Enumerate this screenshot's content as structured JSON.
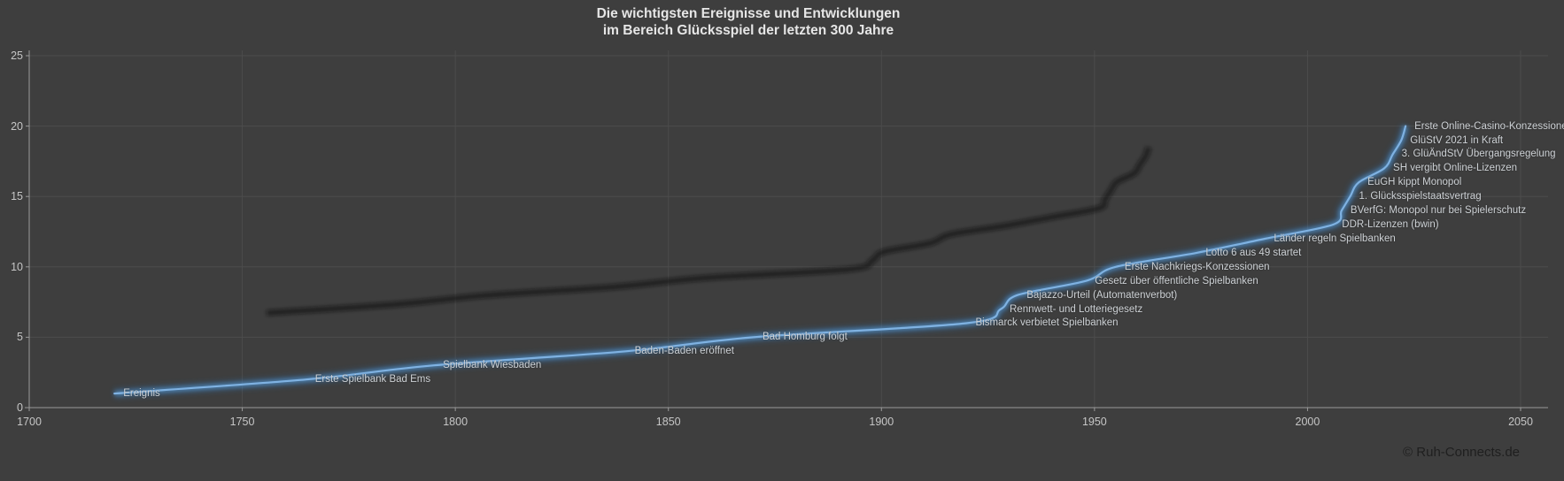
{
  "title": {
    "line1": "Die wichtigsten Ereignisse und Entwicklungen",
    "line2": "im Bereich Glücksspiel der letzten 300 Jahre"
  },
  "footer": {
    "copyright": "© Ruh-Connects.de"
  },
  "colors": {
    "background": "#3e3e3e",
    "line": "#5b9bd5",
    "line_glow": "#2f6da8",
    "line_core": "#7fb2e2",
    "gridline": "#4c4c4c",
    "axis": "#9a9a9a",
    "axis_text": "#c6c6c6",
    "label_text": "#cdd1d5",
    "shadow_line": "#101010",
    "title_text": "#e6e6e6",
    "copyright_text": "#1f1f1f"
  },
  "chart_data": {
    "type": "line",
    "title": "Die wichtigsten Ereignisse und Entwicklungen im Bereich Glücksspiel der letzten 300 Jahre",
    "series_name": "Ereignis",
    "xlabel": "",
    "ylabel": "",
    "xlim": [
      1700,
      2050
    ],
    "ylim": [
      0,
      25
    ],
    "x_ticks": [
      "1700",
      "1750",
      "1800",
      "1850",
      "1900",
      "1950",
      "2000",
      "2050"
    ],
    "y_ticks": [
      "0",
      "5",
      "10",
      "15",
      "20",
      "25"
    ],
    "grid": true,
    "legend_position": "none",
    "points": [
      {
        "label": "Ereignis",
        "year": 1720,
        "value": 1
      },
      {
        "label": "Erste Spielbank Bad Ems",
        "year": 1765,
        "value": 2
      },
      {
        "label": "Spielbank Wiesbaden",
        "year": 1795,
        "value": 3
      },
      {
        "label": "Baden-Baden eröffnet",
        "year": 1840,
        "value": 4
      },
      {
        "label": "Bad Homburg folgt",
        "year": 1870,
        "value": 5
      },
      {
        "label": "Bismarck verbietet Spielbanken",
        "year": 1920,
        "value": 6
      },
      {
        "label": "Rennwett- und Lotteriegesetz",
        "year": 1928,
        "value": 7
      },
      {
        "label": "Bajazzo-Urteil (Automatenverbot)",
        "year": 1932,
        "value": 8
      },
      {
        "label": "Gesetz über öffentliche Spielbanken",
        "year": 1948,
        "value": 9
      },
      {
        "label": "Erste Nachkriegs-Konzessionen",
        "year": 1955,
        "value": 10
      },
      {
        "label": "Lotto 6 aus 49 startet",
        "year": 1974,
        "value": 11
      },
      {
        "label": "Länder regeln Spielbanken",
        "year": 1990,
        "value": 12
      },
      {
        "label": "DDR-Lizenzen (bwin)",
        "year": 2006,
        "value": 13
      },
      {
        "label": "BVerfG: Monopol nur bei Spielerschutz",
        "year": 2008,
        "value": 14
      },
      {
        "label": "1. Glücksspielstaatsvertrag",
        "year": 2010,
        "value": 15
      },
      {
        "label": "EuGH kippt Monopol",
        "year": 2012,
        "value": 16
      },
      {
        "label": "SH vergibt Online-Lizenzen",
        "year": 2018,
        "value": 17
      },
      {
        "label": "3. GlüÄndStV Übergangsregelung",
        "year": 2020,
        "value": 18
      },
      {
        "label": "GlüStV 2021 in Kraft",
        "year": 2022,
        "value": 19
      },
      {
        "label": "Erste Online-Casino-Konzessionen",
        "year": 2023,
        "value": 20
      }
    ]
  }
}
